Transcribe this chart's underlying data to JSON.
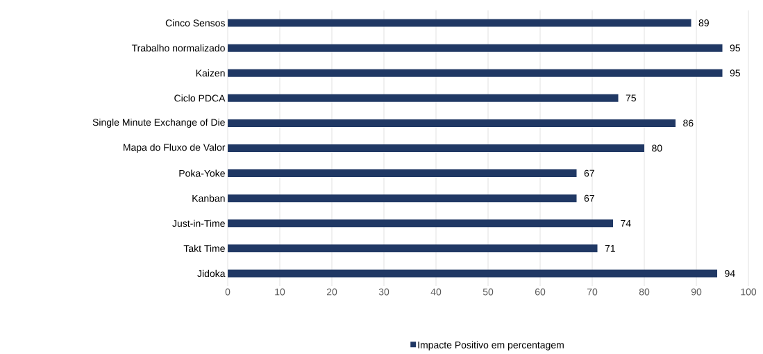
{
  "chart_data": {
    "type": "bar",
    "orientation": "horizontal",
    "categories": [
      "Cinco Sensos",
      "Trabalho normalizado",
      "Kaizen",
      "Ciclo PDCA",
      "Single Minute Exchange of Die",
      "Mapa do Fluxo de Valor",
      "Poka-Yoke",
      "Kanban",
      "Just-in-Time",
      "Takt Time",
      "Jidoka"
    ],
    "series": [
      {
        "name": "Impacte Positivo em percentagem",
        "color": "#203864",
        "values": [
          89,
          95,
          95,
          75,
          86,
          80,
          67,
          67,
          74,
          71,
          94
        ]
      }
    ],
    "xlim": [
      0,
      100
    ],
    "xticks": [
      0,
      10,
      20,
      30,
      40,
      50,
      60,
      70,
      80,
      90,
      100
    ],
    "grid": "x",
    "legend": "bottom",
    "data_labels": true
  }
}
